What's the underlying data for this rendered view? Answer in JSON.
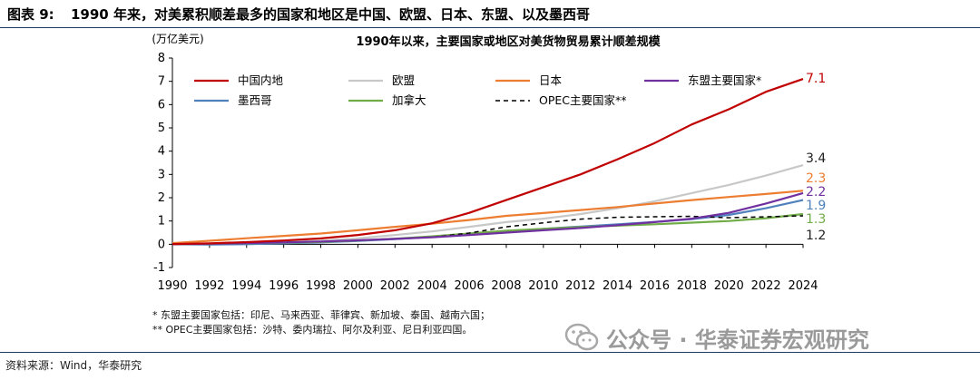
{
  "figure": {
    "label": "图表 9:",
    "title": "1990 年来，对美累积顺差最多的国家和地区是中国、欧盟、日本、东盟、以及墨西哥"
  },
  "chart_data": {
    "type": "line",
    "title": "1990年以来，主要国家或地区对美货物贸易累计顺差规模",
    "ylabel": "(万亿美元)",
    "xlabel": "",
    "ylim": [
      -1,
      8
    ],
    "yticks": [
      "-1",
      "0",
      "1",
      "2",
      "3",
      "4",
      "5",
      "6",
      "7",
      "8"
    ],
    "xlim": [
      1990,
      2024
    ],
    "xticks": [
      "1990",
      "1992",
      "1994",
      "1996",
      "1998",
      "2000",
      "2002",
      "2004",
      "2006",
      "2008",
      "2010",
      "2012",
      "2014",
      "2016",
      "2018",
      "2020",
      "2022",
      "2024"
    ],
    "legend_position": "top-left",
    "series": [
      {
        "name": "中国内地",
        "color": "#c00000",
        "dash": "solid",
        "end_label": "7.1",
        "label_color": "#c00000",
        "x": [
          1990,
          1992,
          1994,
          1996,
          1998,
          2000,
          2002,
          2004,
          2006,
          2008,
          2010,
          2012,
          2014,
          2016,
          2018,
          2020,
          2022,
          2024
        ],
        "values": [
          0.01,
          0.04,
          0.09,
          0.16,
          0.25,
          0.4,
          0.6,
          0.9,
          1.35,
          1.9,
          2.45,
          3.0,
          3.65,
          4.35,
          5.15,
          5.8,
          6.55,
          7.1
        ]
      },
      {
        "name": "欧盟",
        "color": "#c8c8c8",
        "dash": "solid",
        "end_label": "3.4",
        "label_color": "#222222",
        "x": [
          1990,
          1992,
          1994,
          1996,
          1998,
          2000,
          2002,
          2004,
          2006,
          2008,
          2010,
          2012,
          2014,
          2016,
          2018,
          2020,
          2022,
          2024
        ],
        "values": [
          0.0,
          0.02,
          0.05,
          0.09,
          0.15,
          0.25,
          0.4,
          0.55,
          0.75,
          0.95,
          1.1,
          1.3,
          1.55,
          1.85,
          2.2,
          2.55,
          2.95,
          3.4
        ]
      },
      {
        "name": "日本",
        "color": "#ed7d31",
        "dash": "solid",
        "end_label": "2.3",
        "label_color": "#ed7d31",
        "x": [
          1990,
          1992,
          1994,
          1996,
          1998,
          2000,
          2002,
          2004,
          2006,
          2008,
          2010,
          2012,
          2014,
          2016,
          2018,
          2020,
          2022,
          2024
        ],
        "values": [
          0.05,
          0.15,
          0.26,
          0.36,
          0.46,
          0.6,
          0.75,
          0.88,
          1.04,
          1.22,
          1.34,
          1.47,
          1.6,
          1.75,
          1.9,
          2.03,
          2.16,
          2.3
        ]
      },
      {
        "name": "东盟主要国家*",
        "color": "#7030a0",
        "dash": "solid",
        "end_label": "2.2",
        "label_color": "#7030a0",
        "x": [
          1990,
          1992,
          1994,
          1996,
          1998,
          2000,
          2002,
          2004,
          2006,
          2008,
          2010,
          2012,
          2014,
          2016,
          2018,
          2020,
          2022,
          2024
        ],
        "values": [
          0.0,
          0.02,
          0.05,
          0.08,
          0.12,
          0.17,
          0.23,
          0.3,
          0.4,
          0.5,
          0.6,
          0.7,
          0.82,
          0.95,
          1.1,
          1.35,
          1.75,
          2.2
        ]
      },
      {
        "name": "墨西哥",
        "color": "#4f81bd",
        "dash": "solid",
        "end_label": "1.9",
        "label_color": "#4f81bd",
        "x": [
          1990,
          1992,
          1994,
          1996,
          1998,
          2000,
          2002,
          2004,
          2006,
          2008,
          2010,
          2012,
          2014,
          2016,
          2018,
          2020,
          2022,
          2024
        ],
        "values": [
          0.0,
          -0.01,
          0.0,
          0.04,
          0.08,
          0.14,
          0.22,
          0.32,
          0.44,
          0.56,
          0.66,
          0.76,
          0.86,
          0.96,
          1.08,
          1.26,
          1.55,
          1.9
        ]
      },
      {
        "name": "加拿大",
        "color": "#70ad47",
        "dash": "solid",
        "end_label": "1.3",
        "label_color": "#70ad47",
        "x": [
          1990,
          1992,
          1994,
          1996,
          1998,
          2000,
          2002,
          2004,
          2006,
          2008,
          2010,
          2012,
          2014,
          2016,
          2018,
          2020,
          2022,
          2024
        ],
        "values": [
          0.0,
          0.02,
          0.04,
          0.07,
          0.1,
          0.16,
          0.24,
          0.34,
          0.46,
          0.58,
          0.66,
          0.74,
          0.8,
          0.86,
          0.93,
          1.0,
          1.12,
          1.3
        ]
      },
      {
        "name": "OPEC主要国家**",
        "color": "#000000",
        "dash": "dashed",
        "end_label": "1.2",
        "label_color": "#222222",
        "x": [
          1990,
          1992,
          1994,
          1996,
          1998,
          2000,
          2002,
          2004,
          2006,
          2008,
          2010,
          2012,
          2014,
          2016,
          2018,
          2020,
          2022,
          2024
        ],
        "values": [
          0.0,
          0.03,
          0.06,
          0.09,
          0.12,
          0.17,
          0.23,
          0.3,
          0.48,
          0.75,
          0.92,
          1.08,
          1.16,
          1.18,
          1.2,
          1.14,
          1.18,
          1.22
        ]
      }
    ]
  },
  "notes": [
    "*  东盟主要国家包括：印尼、马来西亚、菲律宾、新加坡、泰国、越南六国；",
    "** OPEC主要国家包括：沙特、委内瑞拉、阿尔及利亚、尼日利亚四国。"
  ],
  "source": "资料来源：Wind，华泰研究",
  "watermark": "公众号 · 华泰证券宏观研究"
}
